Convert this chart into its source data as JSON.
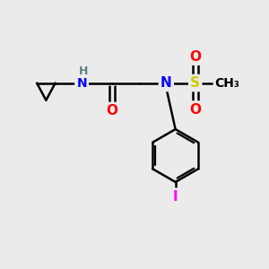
{
  "bg_color": "#ebebeb",
  "bond_color": "#000000",
  "bond_width": 1.8,
  "atom_colors": {
    "N": "#0000ff",
    "O": "#ff0000",
    "S": "#cccc00",
    "I": "#ff00ff",
    "H": "#5a8080",
    "C": "#000000"
  },
  "font_size": 10,
  "fig_size": [
    3.0,
    3.0
  ],
  "dpi": 100,
  "xlim": [
    0,
    10
  ],
  "ylim": [
    0,
    10
  ]
}
